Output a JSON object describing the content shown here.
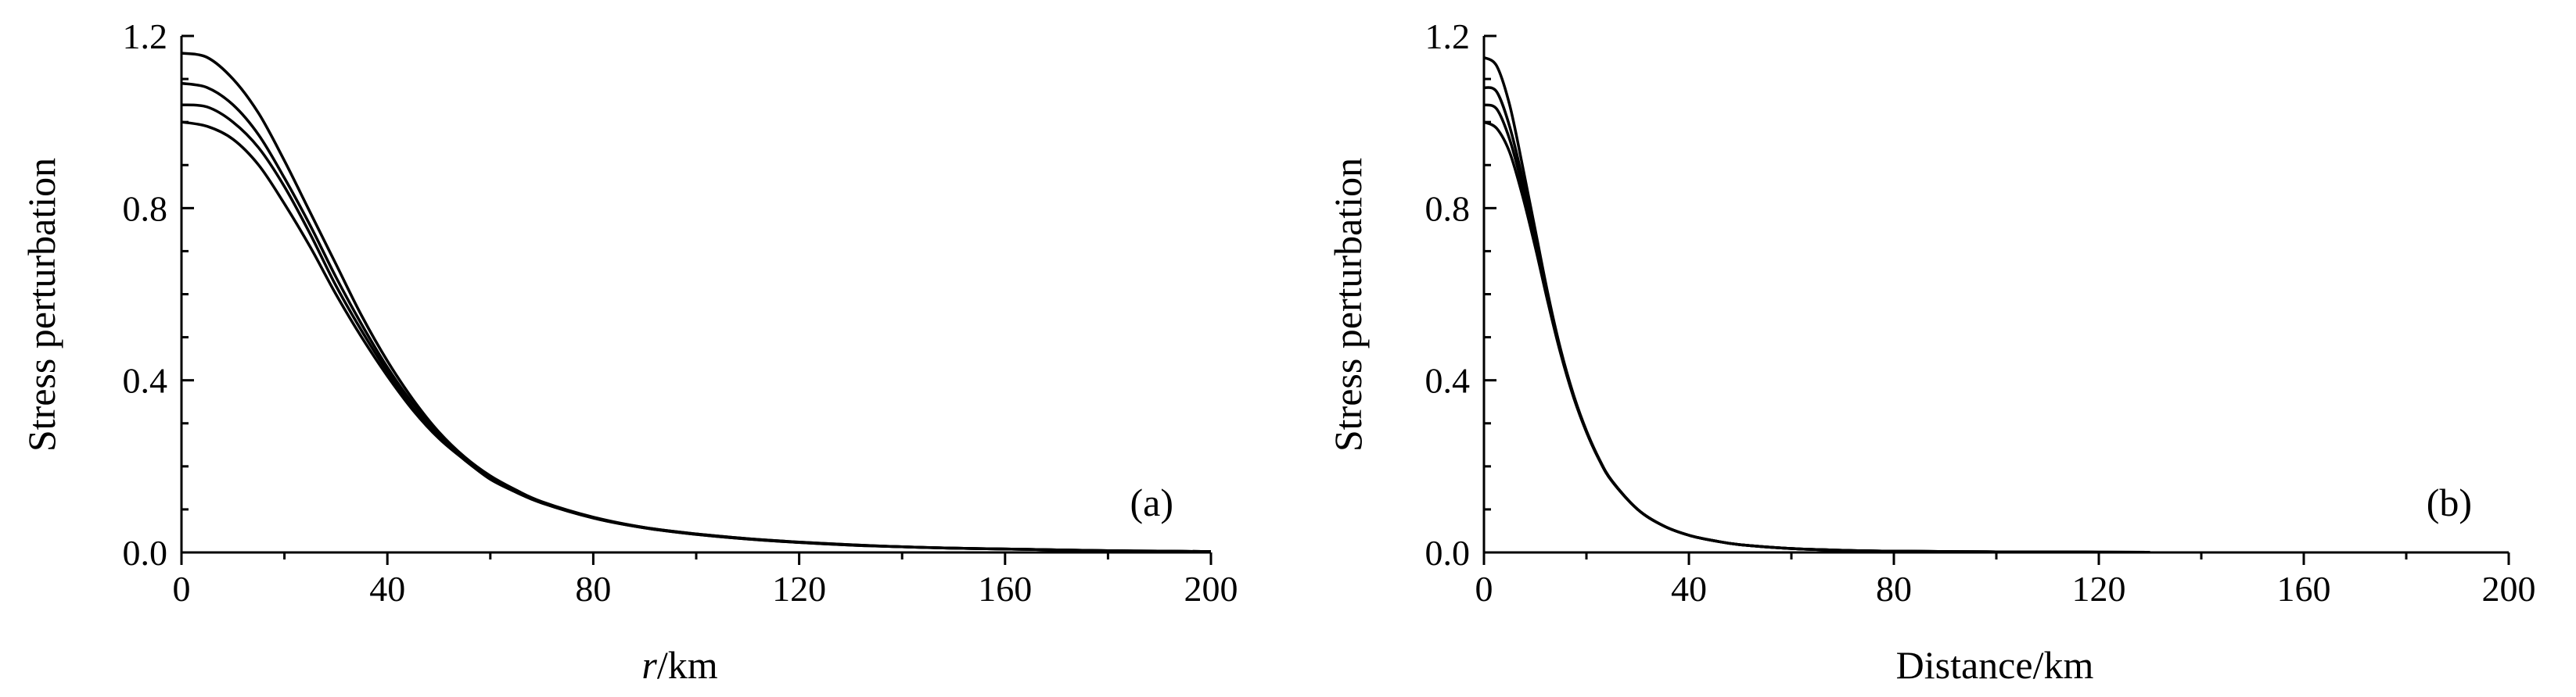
{
  "chart_data": [
    {
      "type": "line",
      "panel_label": "(a)",
      "xlabel_italic": "r",
      "xlabel_rest": "/km",
      "ylabel": "Stress perturbation",
      "xlim": [
        0,
        200
      ],
      "ylim": [
        0,
        1.2
      ],
      "xticks": [
        "0",
        "40",
        "80",
        "120",
        "160",
        "200"
      ],
      "yticks": [
        "0.0",
        "0.4",
        "0.8",
        "1.2"
      ],
      "grid": false,
      "line_color": "#000000",
      "x": [
        0,
        5,
        10,
        15,
        20,
        25,
        30,
        35,
        40,
        45,
        50,
        55,
        60,
        65,
        70,
        80,
        90,
        100,
        110,
        120,
        130,
        140,
        150,
        160,
        170,
        180,
        190,
        200
      ],
      "series": [
        {
          "values": [
            1.0,
            0.99,
            0.96,
            0.9,
            0.81,
            0.71,
            0.6,
            0.5,
            0.41,
            0.33,
            0.265,
            0.215,
            0.17,
            0.14,
            0.115,
            0.08,
            0.057,
            0.042,
            0.031,
            0.023,
            0.017,
            0.013,
            0.01,
            0.008,
            0.006,
            0.004,
            0.003,
            0.002
          ]
        },
        {
          "values": [
            1.04,
            1.035,
            1.0,
            0.94,
            0.85,
            0.74,
            0.62,
            0.515,
            0.42,
            0.335,
            0.27,
            0.215,
            0.172,
            0.14,
            0.115,
            0.08,
            0.057,
            0.042,
            0.031,
            0.023,
            0.017,
            0.013,
            0.01,
            0.008,
            0.006,
            0.004,
            0.003,
            0.002
          ]
        },
        {
          "values": [
            1.09,
            1.08,
            1.04,
            0.97,
            0.87,
            0.76,
            0.64,
            0.53,
            0.43,
            0.345,
            0.275,
            0.22,
            0.176,
            0.143,
            0.117,
            0.081,
            0.058,
            0.043,
            0.032,
            0.024,
            0.018,
            0.013,
            0.01,
            0.008,
            0.006,
            0.004,
            0.003,
            0.002
          ]
        },
        {
          "values": [
            1.16,
            1.15,
            1.1,
            1.02,
            0.91,
            0.79,
            0.67,
            0.55,
            0.445,
            0.355,
            0.28,
            0.222,
            0.178,
            0.145,
            0.118,
            0.082,
            0.058,
            0.043,
            0.032,
            0.024,
            0.018,
            0.013,
            0.01,
            0.008,
            0.006,
            0.004,
            0.003,
            0.002
          ]
        }
      ]
    },
    {
      "type": "line",
      "panel_label": "(b)",
      "xlabel": "Distance/km",
      "ylabel": "Stress perturbation",
      "xlim": [
        0,
        200
      ],
      "ylim": [
        0,
        1.2
      ],
      "xticks": [
        "0",
        "40",
        "80",
        "120",
        "160",
        "200"
      ],
      "yticks": [
        "0.0",
        "0.4",
        "0.8",
        "1.2"
      ],
      "grid": false,
      "line_color": "#000000",
      "x": [
        0,
        2.5,
        5,
        7.5,
        10,
        12.5,
        15,
        17.5,
        20,
        22.5,
        25,
        30,
        35,
        40,
        45,
        50,
        60,
        70,
        80,
        100,
        120,
        130
      ],
      "series": [
        {
          "values": [
            1.0,
            0.985,
            0.93,
            0.83,
            0.71,
            0.58,
            0.46,
            0.36,
            0.28,
            0.215,
            0.165,
            0.1,
            0.062,
            0.04,
            0.027,
            0.018,
            0.009,
            0.005,
            0.003,
            0.0015,
            0.0007,
            0.0005
          ]
        },
        {
          "values": [
            1.04,
            1.03,
            0.96,
            0.85,
            0.72,
            0.585,
            0.463,
            0.362,
            0.28,
            0.215,
            0.165,
            0.1,
            0.062,
            0.04,
            0.027,
            0.018,
            0.009,
            0.005,
            0.003,
            0.0015,
            0.0007,
            0.0005
          ]
        },
        {
          "values": [
            1.08,
            1.07,
            0.99,
            0.87,
            0.73,
            0.59,
            0.466,
            0.364,
            0.282,
            0.216,
            0.166,
            0.1,
            0.062,
            0.04,
            0.027,
            0.018,
            0.009,
            0.005,
            0.003,
            0.0015,
            0.0007,
            0.0005
          ]
        },
        {
          "values": [
            1.15,
            1.13,
            1.04,
            0.9,
            0.75,
            0.6,
            0.47,
            0.366,
            0.283,
            0.217,
            0.166,
            0.1,
            0.062,
            0.04,
            0.027,
            0.018,
            0.009,
            0.005,
            0.003,
            0.0015,
            0.0007,
            0.0005
          ]
        }
      ]
    }
  ]
}
